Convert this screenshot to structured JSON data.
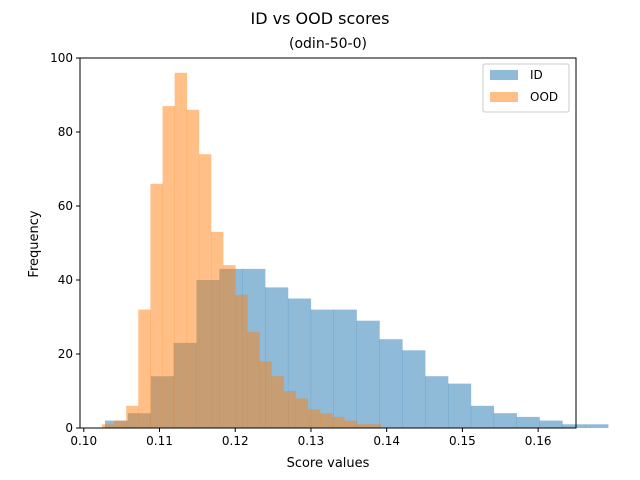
{
  "chart_data": {
    "type": "histogram",
    "title": "ID vs OOD scores",
    "subtitle": "(odin-50-0)",
    "xlabel": "Score values",
    "ylabel": "Frequency",
    "xlim": [
      0.0995,
      0.165
    ],
    "ylim": [
      0,
      100
    ],
    "xticks": [
      0.1,
      0.11,
      0.12,
      0.13,
      0.14,
      0.15,
      0.16
    ],
    "xtick_labels": [
      "0.10",
      "0.11",
      "0.12",
      "0.13",
      "0.14",
      "0.15",
      "0.16"
    ],
    "yticks": [
      0,
      20,
      40,
      60,
      80,
      100
    ],
    "ytick_labels": [
      "0",
      "20",
      "40",
      "60",
      "80",
      "100"
    ],
    "legend_position": "top-right",
    "series": [
      {
        "name": "ID",
        "color": "#1f77b4",
        "alpha": 0.5,
        "bin_start": 0.1028,
        "bin_width": 0.00302,
        "counts": [
          2,
          4,
          14,
          23,
          40,
          43,
          43,
          38,
          35,
          32,
          32,
          29,
          24,
          21,
          14,
          12,
          6,
          4,
          3,
          2,
          1,
          1,
          0,
          0,
          0,
          0,
          0,
          0,
          0,
          0,
          0,
          0,
          0,
          0,
          0,
          1
        ]
      },
      {
        "name": "OOD",
        "color": "#ff7f0e",
        "alpha": 0.5,
        "bin_start": 0.1024,
        "bin_width": 0.0016,
        "counts": [
          1,
          2,
          6,
          32,
          66,
          87,
          96,
          86,
          74,
          53,
          44,
          36,
          26,
          18,
          14,
          10,
          8,
          5,
          4,
          3,
          2,
          1,
          1,
          0
        ]
      }
    ]
  }
}
